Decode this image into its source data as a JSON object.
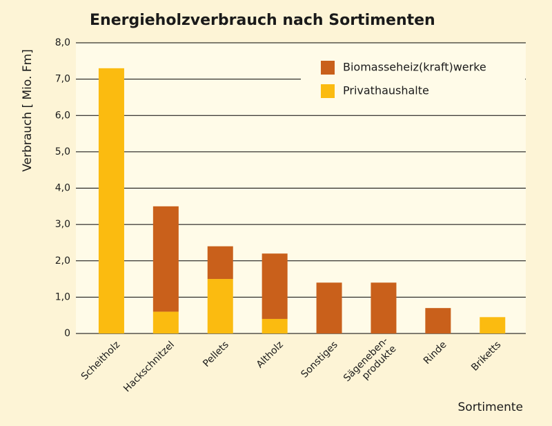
{
  "chart_data": {
    "type": "stacked-bar",
    "title": "Energieholzverbrauch nach Sortimenten",
    "y_label": "Verbrauch [ Mio. Fm]",
    "x_label": "Sortimente",
    "categories": [
      "Scheitholz",
      "Hackschnitzel",
      "Pellets",
      "Altholz",
      "Sonstiges",
      "Sägeneben-\nprodukte",
      "Rinde",
      "Briketts"
    ],
    "series": [
      {
        "name": "Privathaushalte",
        "color": "#fbbb10",
        "values": [
          7.3,
          0.6,
          1.5,
          0.4,
          0,
          0,
          0,
          0.45
        ]
      },
      {
        "name": "Biomasseheiz(kraft)werke",
        "color": "#c9601b",
        "values": [
          0,
          2.9,
          0.9,
          1.8,
          1.4,
          1.4,
          0.7,
          0
        ]
      }
    ],
    "ylim": [
      0,
      8
    ],
    "yticks": [
      0,
      {
        "value": 1,
        "label": "1,0"
      },
      {
        "value": 2,
        "label": "2,0"
      },
      {
        "value": 3,
        "label": "3,0"
      },
      {
        "value": 4,
        "label": "4,0"
      },
      {
        "value": 5,
        "label": "5,0"
      },
      {
        "value": 6,
        "label": "6,0"
      },
      {
        "value": 7,
        "label": "7,0"
      },
      {
        "value": 8,
        "label": "8,0"
      }
    ],
    "grid": true
  }
}
